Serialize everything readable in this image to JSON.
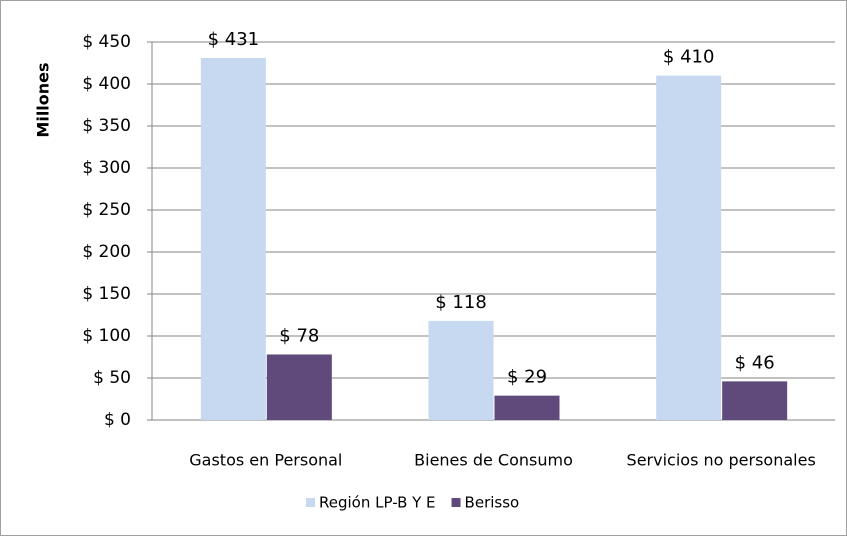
{
  "chart_data": {
    "type": "bar",
    "y_label": "Millones",
    "categories": [
      "Gastos en Personal",
      "Bienes de Consumo",
      "Servicios no personales"
    ],
    "series": [
      {
        "name": "Región LP-B Y E",
        "color": "#c6d9f1",
        "values": [
          431,
          118,
          410
        ],
        "value_labels": [
          "$ 431",
          "$ 118",
          "$ 410"
        ]
      },
      {
        "name": "Berisso",
        "color": "#604a7b",
        "values": [
          78,
          29,
          46
        ],
        "value_labels": [
          "$ 78",
          "$ 29",
          "$ 46"
        ]
      }
    ],
    "ylim": [
      0,
      450
    ],
    "yticks": [
      {
        "value": 0,
        "label": "$ 0"
      },
      {
        "value": 50,
        "label": "$ 50"
      },
      {
        "value": 100,
        "label": "$ 100"
      },
      {
        "value": 150,
        "label": "$ 150"
      },
      {
        "value": 200,
        "label": "$ 200"
      },
      {
        "value": 250,
        "label": "$ 250"
      },
      {
        "value": 300,
        "label": "$ 300"
      },
      {
        "value": 350,
        "label": "$ 350"
      },
      {
        "value": 400,
        "label": "$ 400"
      },
      {
        "value": 450,
        "label": "$ 450"
      }
    ],
    "grid": true,
    "legend": "bottom"
  }
}
